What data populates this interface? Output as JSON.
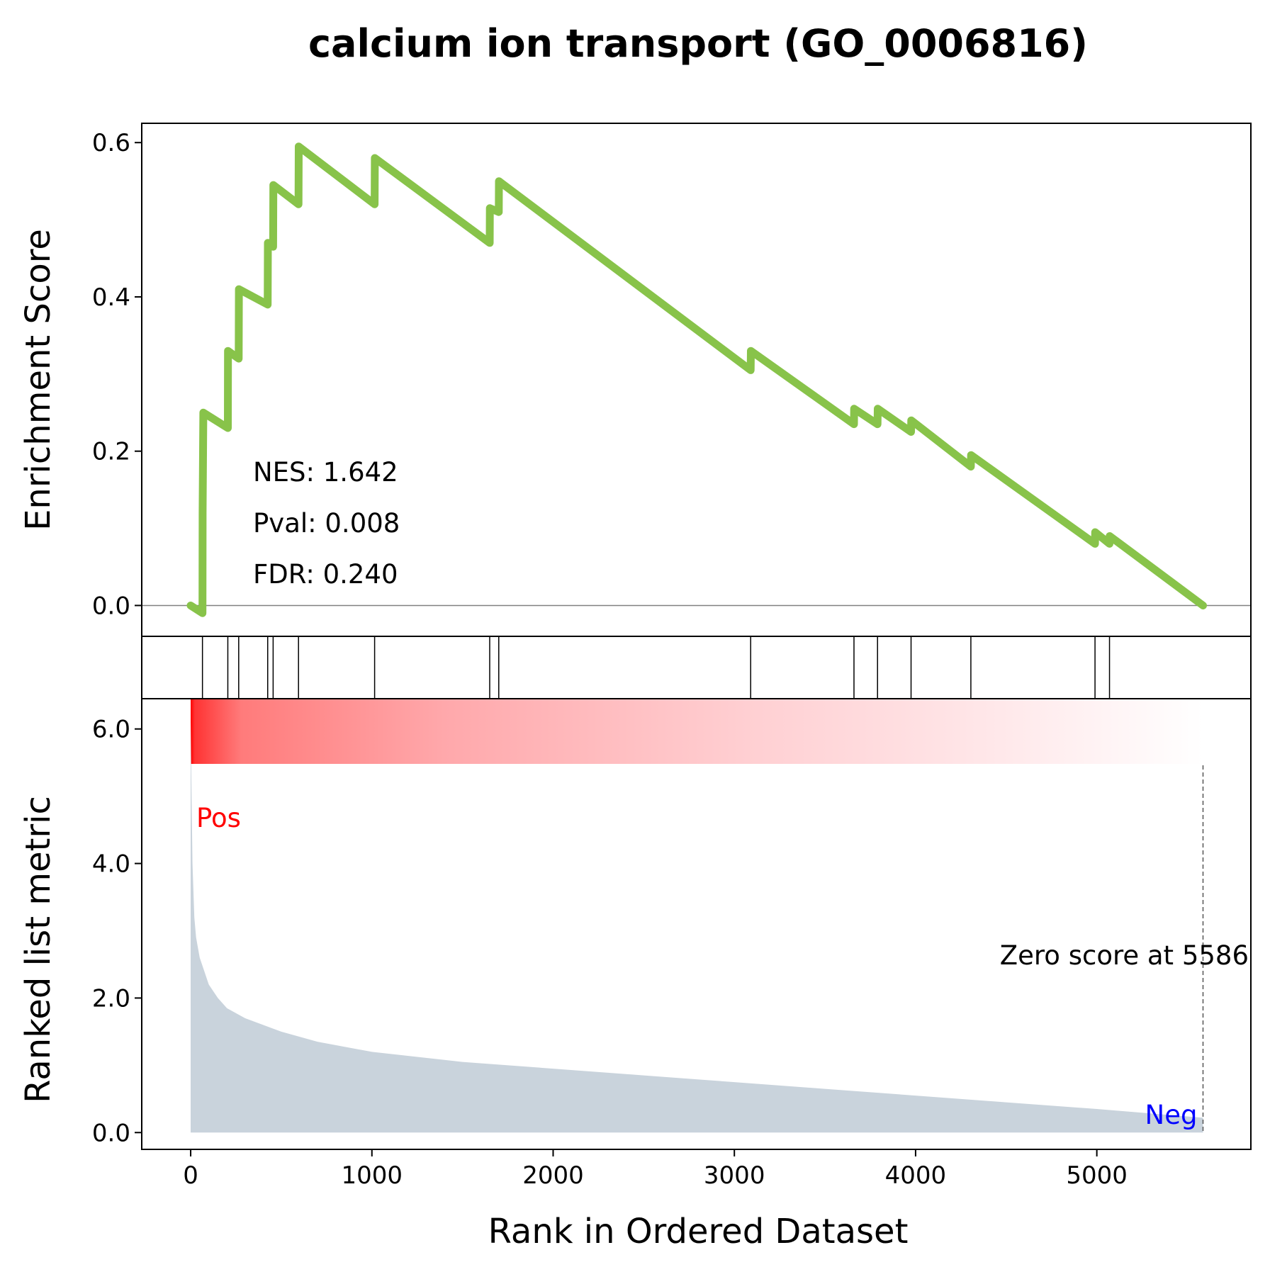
{
  "chart_data": {
    "type": "line",
    "title": "calcium ion transport (GO_0006816)",
    "xlabel": "Rank in Ordered Dataset",
    "xlim": [
      -270,
      5850
    ],
    "xticks": [
      0,
      1000,
      2000,
      3000,
      4000,
      5000
    ],
    "xtick_labels": [
      "0",
      "1000",
      "2000",
      "3000",
      "4000",
      "5000"
    ],
    "enrichment": {
      "ylabel": "Enrichment Score",
      "ylim": [
        -0.04,
        0.625
      ],
      "yticks": [
        0.0,
        0.2,
        0.4,
        0.6
      ],
      "ytick_labels": [
        "0.0",
        "0.2",
        "0.4",
        "0.6"
      ],
      "line_color": "#88c34a",
      "points": [
        [
          0,
          0.0
        ],
        [
          65,
          -0.01
        ],
        [
          66,
          0.12
        ],
        [
          70,
          0.25
        ],
        [
          205,
          0.23
        ],
        [
          206,
          0.33
        ],
        [
          265,
          0.32
        ],
        [
          266,
          0.41
        ],
        [
          425,
          0.39
        ],
        [
          426,
          0.47
        ],
        [
          455,
          0.465
        ],
        [
          456,
          0.545
        ],
        [
          595,
          0.52
        ],
        [
          596,
          0.595
        ],
        [
          1015,
          0.52
        ],
        [
          1016,
          0.58
        ],
        [
          1650,
          0.47
        ],
        [
          1651,
          0.515
        ],
        [
          1700,
          0.51
        ],
        [
          1701,
          0.55
        ],
        [
          3090,
          0.305
        ],
        [
          3091,
          0.33
        ],
        [
          3660,
          0.235
        ],
        [
          3661,
          0.255
        ],
        [
          3790,
          0.235
        ],
        [
          3791,
          0.255
        ],
        [
          3975,
          0.225
        ],
        [
          3976,
          0.24
        ],
        [
          4305,
          0.18
        ],
        [
          4306,
          0.195
        ],
        [
          4990,
          0.08
        ],
        [
          4991,
          0.095
        ],
        [
          5070,
          0.08
        ],
        [
          5071,
          0.09
        ],
        [
          5586,
          0.0
        ]
      ],
      "stats": [
        "NES: 1.642",
        "Pval: 0.008",
        "FDR: 0.240"
      ]
    },
    "hits": [
      65,
      205,
      265,
      425,
      455,
      595,
      1015,
      1650,
      1700,
      3090,
      3660,
      3790,
      3975,
      4305,
      4990,
      5070
    ],
    "ranked_metric": {
      "ylabel": "Ranked list metric",
      "ylim": [
        -0.25,
        6.45
      ],
      "yticks": [
        0.0,
        2.0,
        4.0,
        6.0
      ],
      "ytick_labels": [
        "0.0",
        "2.0",
        "4.0",
        "6.0"
      ],
      "fill_color": "#c9d3dc",
      "curve": [
        [
          0,
          6.1
        ],
        [
          5,
          5.0
        ],
        [
          10,
          4.0
        ],
        [
          20,
          3.2
        ],
        [
          30,
          2.9
        ],
        [
          50,
          2.6
        ],
        [
          75,
          2.4
        ],
        [
          100,
          2.2
        ],
        [
          150,
          2.0
        ],
        [
          200,
          1.85
        ],
        [
          300,
          1.7
        ],
        [
          400,
          1.6
        ],
        [
          500,
          1.5
        ],
        [
          700,
          1.35
        ],
        [
          1000,
          1.2
        ],
        [
          1500,
          1.05
        ],
        [
          2000,
          0.95
        ],
        [
          2500,
          0.85
        ],
        [
          3000,
          0.75
        ],
        [
          3500,
          0.65
        ],
        [
          4000,
          0.55
        ],
        [
          4500,
          0.45
        ],
        [
          5000,
          0.35
        ],
        [
          5586,
          0.22
        ]
      ],
      "pos_label": "Pos",
      "pos_color": "#ff0000",
      "neg_label": "Neg",
      "neg_color": "#0000ff",
      "zero_score_text": "Zero score at 5586",
      "zero_score_rank": 5586
    },
    "heatmap": {
      "range": [
        0,
        5586
      ],
      "color_start": "#ff0000",
      "color_end": "#ffffff"
    }
  }
}
